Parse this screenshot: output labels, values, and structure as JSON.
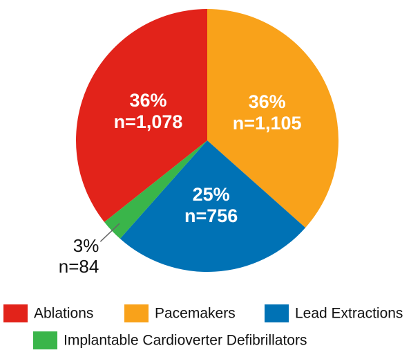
{
  "chart_data": {
    "type": "pie",
    "categories": [
      "Ablations",
      "Pacemakers",
      "Lead Extractions",
      "Implantable Cardioverter Defibrillators"
    ],
    "values": [
      1078,
      1105,
      756,
      84
    ],
    "value_labels": [
      "n=1,078",
      "n=1,105",
      "n=756",
      "n=84"
    ],
    "percent_labels": [
      "36%",
      "36%",
      "25%",
      "3%"
    ],
    "colors": [
      "#e2231a",
      "#f9a21a",
      "#0072b5",
      "#3ab54a"
    ]
  }
}
